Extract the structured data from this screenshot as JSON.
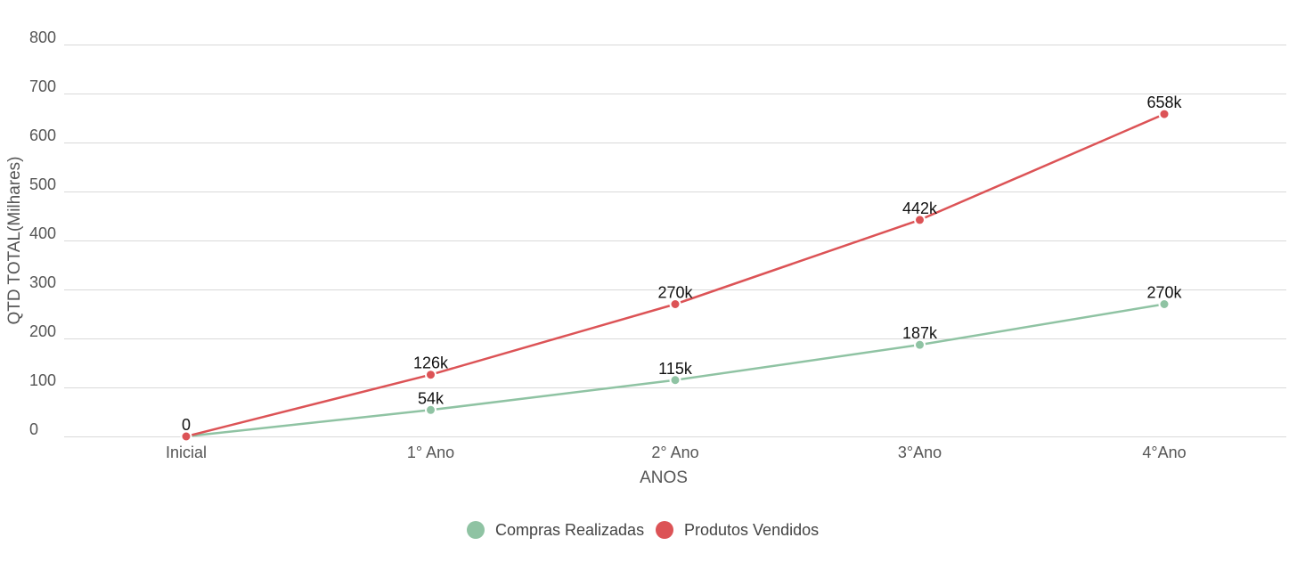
{
  "chart_data": {
    "type": "line",
    "title": "",
    "xlabel": "ANOS",
    "ylabel": "QTD TOTAL(Milhares)",
    "categories": [
      "Inicial",
      "1° Ano",
      "2° Ano",
      "3°Ano",
      "4°Ano"
    ],
    "ylim": [
      0,
      800
    ],
    "yticks": [
      "0",
      "100",
      "200",
      "300",
      "400",
      "500",
      "600",
      "700",
      "800"
    ],
    "grid": true,
    "legend_position": "bottom-center",
    "series": [
      {
        "name": "Compras Realizadas",
        "color": "#8fc3a3",
        "values": [
          0,
          54,
          115,
          187,
          270
        ],
        "labels": [
          "",
          "54k",
          "115k",
          "187k",
          "270k"
        ]
      },
      {
        "name": "Produtos Vendidos",
        "color": "#dc5356",
        "values": [
          0,
          126,
          270,
          442,
          658
        ],
        "labels": [
          "0",
          "126k",
          "270k",
          "442k",
          "658k"
        ]
      }
    ]
  }
}
